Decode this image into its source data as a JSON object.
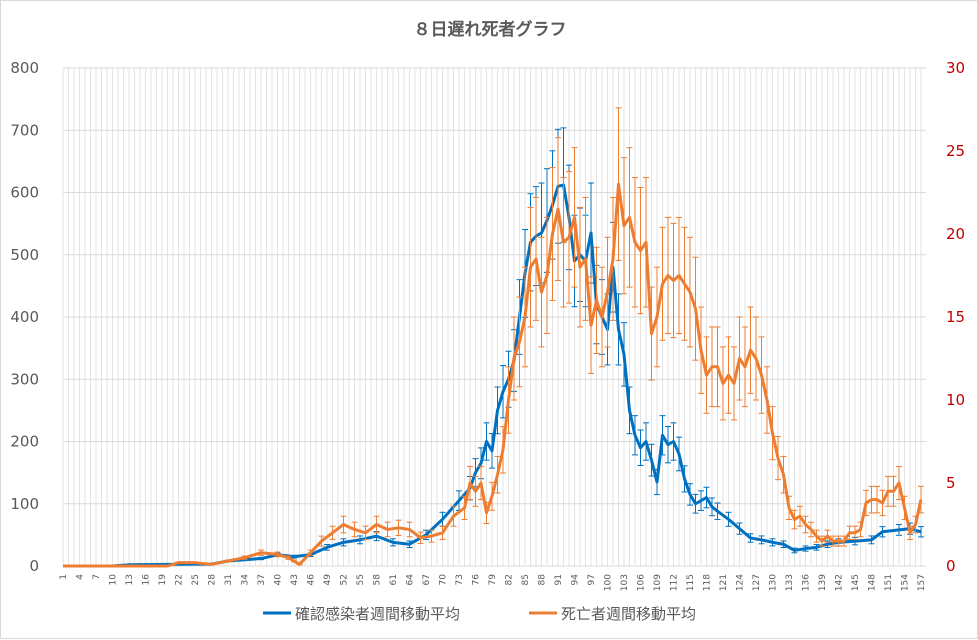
{
  "chart_data": {
    "type": "line",
    "title": "８日遅れ死者グラフ",
    "xlabel": "",
    "ylabel": "",
    "x_range": [
      1,
      157
    ],
    "x_tick_step": 3,
    "ylim": [
      0,
      800
    ],
    "y_ticks": [
      0,
      100,
      200,
      300,
      400,
      500,
      600,
      700,
      800
    ],
    "y2lim": [
      0,
      30
    ],
    "y2_ticks": [
      0,
      5,
      10,
      15,
      20,
      25,
      30
    ],
    "grid": true,
    "legend_position": "bottom",
    "series": [
      {
        "name": "確認感染者週間移動平均",
        "axis": "left",
        "color": "#0070C0",
        "error_fraction": 0.15,
        "points": [
          [
            1,
            0
          ],
          [
            10,
            0
          ],
          [
            13,
            2
          ],
          [
            25,
            3
          ],
          [
            28,
            3
          ],
          [
            31,
            8
          ],
          [
            37,
            12
          ],
          [
            40,
            18
          ],
          [
            43,
            15
          ],
          [
            46,
            18
          ],
          [
            49,
            30
          ],
          [
            52,
            38
          ],
          [
            55,
            42
          ],
          [
            58,
            48
          ],
          [
            61,
            38
          ],
          [
            64,
            35
          ],
          [
            67,
            50
          ],
          [
            70,
            75
          ],
          [
            73,
            105
          ],
          [
            75,
            125
          ],
          [
            76,
            150
          ],
          [
            77,
            165
          ],
          [
            78,
            200
          ],
          [
            79,
            185
          ],
          [
            80,
            250
          ],
          [
            81,
            280
          ],
          [
            82,
            300
          ],
          [
            83,
            330
          ],
          [
            84,
            400
          ],
          [
            85,
            470
          ],
          [
            86,
            520
          ],
          [
            87,
            530
          ],
          [
            88,
            535
          ],
          [
            89,
            555
          ],
          [
            90,
            580
          ],
          [
            91,
            610
          ],
          [
            92,
            612
          ],
          [
            93,
            560
          ],
          [
            94,
            490
          ],
          [
            95,
            500
          ],
          [
            96,
            490
          ],
          [
            97,
            535
          ],
          [
            98,
            420
          ],
          [
            99,
            400
          ],
          [
            100,
            380
          ],
          [
            101,
            480
          ],
          [
            102,
            380
          ],
          [
            103,
            340
          ],
          [
            104,
            250
          ],
          [
            105,
            210
          ],
          [
            106,
            190
          ],
          [
            107,
            200
          ],
          [
            108,
            170
          ],
          [
            109,
            135
          ],
          [
            110,
            210
          ],
          [
            111,
            195
          ],
          [
            112,
            200
          ],
          [
            113,
            180
          ],
          [
            114,
            140
          ],
          [
            115,
            115
          ],
          [
            116,
            100
          ],
          [
            117,
            105
          ],
          [
            118,
            110
          ],
          [
            119,
            95
          ],
          [
            120,
            88
          ],
          [
            122,
            75
          ],
          [
            124,
            60
          ],
          [
            126,
            45
          ],
          [
            128,
            42
          ],
          [
            130,
            38
          ],
          [
            132,
            35
          ],
          [
            134,
            25
          ],
          [
            136,
            28
          ],
          [
            138,
            30
          ],
          [
            140,
            35
          ],
          [
            142,
            38
          ],
          [
            145,
            40
          ],
          [
            148,
            42
          ],
          [
            150,
            55
          ],
          [
            153,
            58
          ],
          [
            155,
            60
          ],
          [
            157,
            55
          ]
        ]
      },
      {
        "name": "死亡者週間移動平均",
        "axis": "right",
        "color": "#ED7D31",
        "error_fraction": 0.2,
        "points": [
          [
            1,
            0
          ],
          [
            20,
            0
          ],
          [
            22,
            0.2
          ],
          [
            25,
            0.2
          ],
          [
            28,
            0.1
          ],
          [
            31,
            0.3
          ],
          [
            34,
            0.5
          ],
          [
            37,
            0.8
          ],
          [
            40,
            0.7
          ],
          [
            42,
            0.5
          ],
          [
            43,
            0.3
          ],
          [
            44,
            0.1
          ],
          [
            46,
            0.8
          ],
          [
            48,
            1.5
          ],
          [
            50,
            2.0
          ],
          [
            52,
            2.5
          ],
          [
            54,
            2.2
          ],
          [
            56,
            2.0
          ],
          [
            58,
            2.5
          ],
          [
            60,
            2.2
          ],
          [
            62,
            2.3
          ],
          [
            64,
            2.2
          ],
          [
            66,
            1.7
          ],
          [
            68,
            1.8
          ],
          [
            70,
            2.0
          ],
          [
            72,
            3.0
          ],
          [
            74,
            3.5
          ],
          [
            75,
            5.0
          ],
          [
            76,
            4.5
          ],
          [
            77,
            5.0
          ],
          [
            78,
            3.2
          ],
          [
            79,
            4.2
          ],
          [
            80,
            5.5
          ],
          [
            81,
            7.0
          ],
          [
            82,
            10.0
          ],
          [
            83,
            12.5
          ],
          [
            84,
            13.5
          ],
          [
            85,
            15.0
          ],
          [
            86,
            18.0
          ],
          [
            87,
            18.5
          ],
          [
            88,
            16.5
          ],
          [
            89,
            17.5
          ],
          [
            90,
            20.0
          ],
          [
            91,
            21.5
          ],
          [
            92,
            19.5
          ],
          [
            93,
            19.8
          ],
          [
            94,
            21.0
          ],
          [
            95,
            18.0
          ],
          [
            96,
            18.5
          ],
          [
            97,
            14.5
          ],
          [
            98,
            16.0
          ],
          [
            99,
            15.0
          ],
          [
            100,
            16.5
          ],
          [
            101,
            18.5
          ],
          [
            102,
            23.0
          ],
          [
            103,
            20.5
          ],
          [
            104,
            21.0
          ],
          [
            105,
            19.5
          ],
          [
            106,
            19.0
          ],
          [
            107,
            19.5
          ],
          [
            108,
            14.0
          ],
          [
            109,
            15.0
          ],
          [
            110,
            17.0
          ],
          [
            111,
            17.5
          ],
          [
            112,
            17.2
          ],
          [
            113,
            17.5
          ],
          [
            114,
            17.0
          ],
          [
            115,
            16.5
          ],
          [
            116,
            15.5
          ],
          [
            117,
            13.0
          ],
          [
            118,
            11.5
          ],
          [
            119,
            12.0
          ],
          [
            120,
            12.0
          ],
          [
            121,
            11.0
          ],
          [
            122,
            11.5
          ],
          [
            123,
            11.0
          ],
          [
            124,
            12.5
          ],
          [
            125,
            12.0
          ],
          [
            126,
            13.0
          ],
          [
            127,
            12.5
          ],
          [
            128,
            11.5
          ],
          [
            129,
            10.0
          ],
          [
            130,
            8.0
          ],
          [
            131,
            6.5
          ],
          [
            132,
            5.5
          ],
          [
            133,
            3.5
          ],
          [
            134,
            2.8
          ],
          [
            135,
            3.0
          ],
          [
            136,
            2.5
          ],
          [
            137,
            2.2
          ],
          [
            138,
            1.8
          ],
          [
            139,
            1.5
          ],
          [
            140,
            1.8
          ],
          [
            141,
            1.5
          ],
          [
            142,
            1.5
          ],
          [
            143,
            1.5
          ],
          [
            144,
            2.0
          ],
          [
            145,
            2.0
          ],
          [
            146,
            2.2
          ],
          [
            147,
            3.8
          ],
          [
            148,
            4.0
          ],
          [
            149,
            4.0
          ],
          [
            150,
            3.8
          ],
          [
            151,
            4.5
          ],
          [
            152,
            4.5
          ],
          [
            153,
            5.0
          ],
          [
            154,
            3.5
          ],
          [
            155,
            2.0
          ],
          [
            156,
            2.5
          ],
          [
            157,
            4.0
          ]
        ]
      }
    ]
  }
}
